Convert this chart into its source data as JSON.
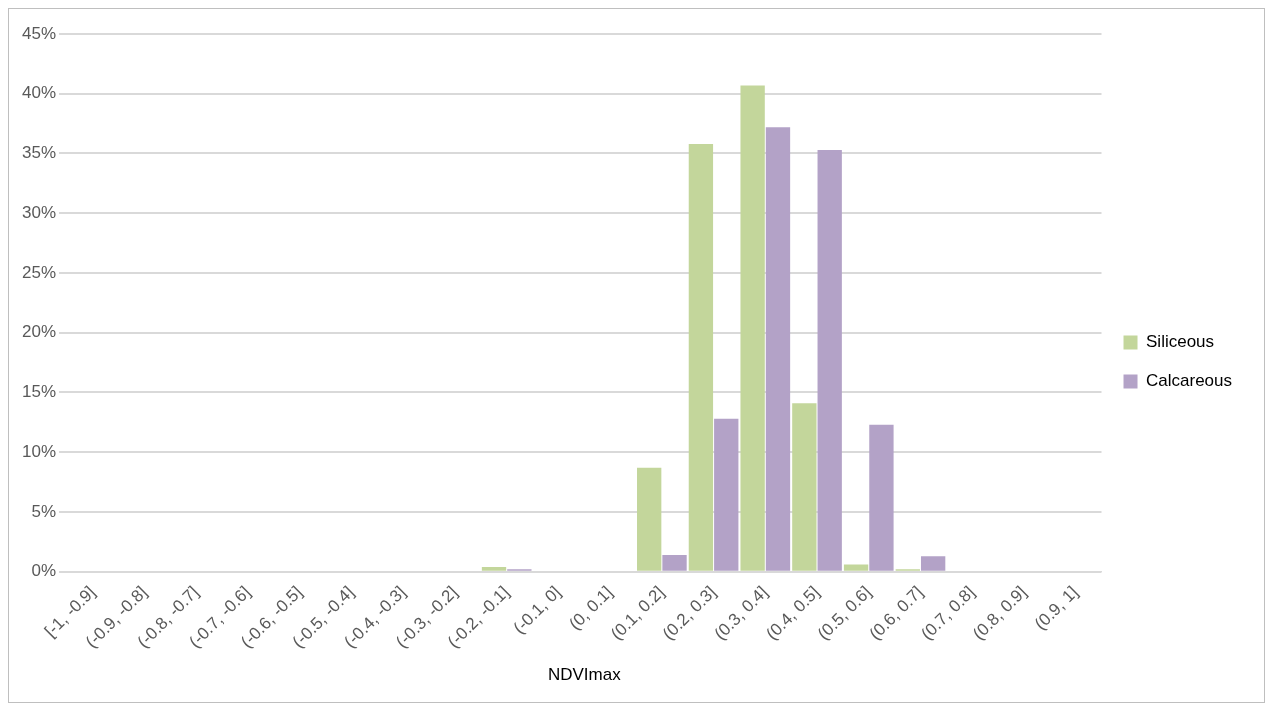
{
  "chart_data": {
    "type": "bar",
    "xlabel": "NDVImax",
    "categories": [
      "[-1, -0.9]",
      "(-0.9, -0.8]",
      "(-0.8, -0.7]",
      "(-0.7, -0.6]",
      "(-0.6, -0.5]",
      "(-0.5, -0.4]",
      "(-0.4, -0.3]",
      "(-0.3, -0.2]",
      "(-0.2, -0.1]",
      "(-0.1, 0]",
      "(0, 0.1]",
      "(0.1, 0.2]",
      "(0.2, 0.3]",
      "(0.3, 0.4]",
      "(0.4, 0.5]",
      "(0.5, 0.6]",
      "(0.6, 0.7]",
      "(0.7, 0.8]",
      "(0.8, 0.9]",
      "(0.9, 1]"
    ],
    "series": [
      {
        "name": "Siliceous",
        "color": "#c3d69b",
        "values": [
          0,
          0,
          0,
          0,
          0,
          0,
          0,
          0,
          0.4,
          0,
          0,
          8.7,
          35.8,
          40.7,
          14.1,
          0.6,
          0.2,
          0,
          0,
          0
        ]
      },
      {
        "name": "Calcareous",
        "color": "#b3a2c7",
        "values": [
          0,
          0,
          0,
          0,
          0,
          0,
          0,
          0,
          0.2,
          0,
          0,
          1.4,
          12.8,
          37.2,
          35.3,
          12.3,
          1.3,
          0,
          0,
          0
        ]
      }
    ],
    "ylim": [
      0,
      45
    ],
    "yticks": [
      {
        "value": 0,
        "label": "0%"
      },
      {
        "value": 5,
        "label": "5%"
      },
      {
        "value": 10,
        "label": "10%"
      },
      {
        "value": 15,
        "label": "15%"
      },
      {
        "value": 20,
        "label": "20%"
      },
      {
        "value": 25,
        "label": "25%"
      },
      {
        "value": 30,
        "label": "30%"
      },
      {
        "value": 35,
        "label": "35%"
      },
      {
        "value": 40,
        "label": "40%"
      },
      {
        "value": 45,
        "label": "45%"
      }
    ],
    "grid": "y",
    "legend": "right"
  }
}
